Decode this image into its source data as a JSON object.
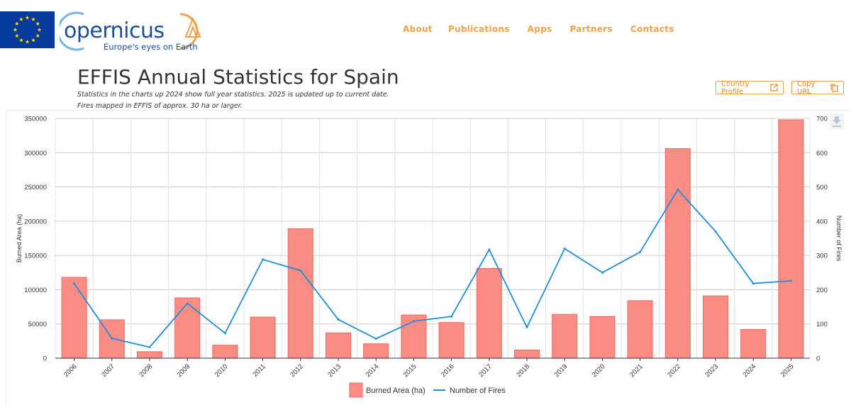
{
  "header": {
    "logo_text": "opernicus",
    "logo_tagline": "Europe's eyes on Earth",
    "nav": [
      "About",
      "Publications",
      "Apps",
      "Partners",
      "Contacts"
    ]
  },
  "page": {
    "title": "EFFIS Annual Statistics for Spain",
    "subtitle_line1": "Statistics in the charts up 2024 show full year statistics. 2025 is updated up to current date.",
    "subtitle_line2": "Fires mapped in EFFIS of approx. 30 ha or larger.",
    "country_profile_label": "Country Profile",
    "copy_url_label": "Copy URL"
  },
  "colors": {
    "accent": "#f0a14a",
    "bar_fill": "#fa8c84",
    "bar_stroke": "#ee6a60",
    "line": "#1e8fde",
    "grid": "#cccccc"
  },
  "chart_data": {
    "type": "bar",
    "categories": [
      "2006",
      "2007",
      "2008",
      "2009",
      "2010",
      "2011",
      "2012",
      "2013",
      "2014",
      "2015",
      "2016",
      "2017",
      "2018",
      "2019",
      "2020",
      "2021",
      "2022",
      "2023",
      "2024",
      "2025"
    ],
    "series": [
      {
        "name": "Burned Area (ha)",
        "type": "bar",
        "axis": "left",
        "values": [
          118000,
          56000,
          9500,
          88000,
          19000,
          60000,
          189000,
          37000,
          21000,
          63000,
          52000,
          131000,
          12000,
          64000,
          61000,
          84000,
          306000,
          91000,
          42000,
          348000
        ]
      },
      {
        "name": "Number of Fires",
        "type": "line",
        "axis": "right",
        "values": [
          218,
          58,
          32,
          160,
          73,
          288,
          256,
          113,
          57,
          108,
          122,
          317,
          90,
          320,
          250,
          310,
          492,
          370,
          218,
          226
        ]
      }
    ],
    "ylabel_left": "Burned Area (ha)",
    "ylabel_right": "Number of Fires",
    "ylim_left": [
      0,
      350000
    ],
    "ylim_right": [
      0,
      700
    ],
    "yticks_left": [
      "0",
      "50000",
      "100000",
      "150000",
      "200000",
      "250000",
      "300000",
      "350000"
    ],
    "yticks_right": [
      "0",
      "100",
      "200",
      "300",
      "400",
      "500",
      "600",
      "700"
    ],
    "grid": true,
    "legend_position": "bottom-center"
  }
}
